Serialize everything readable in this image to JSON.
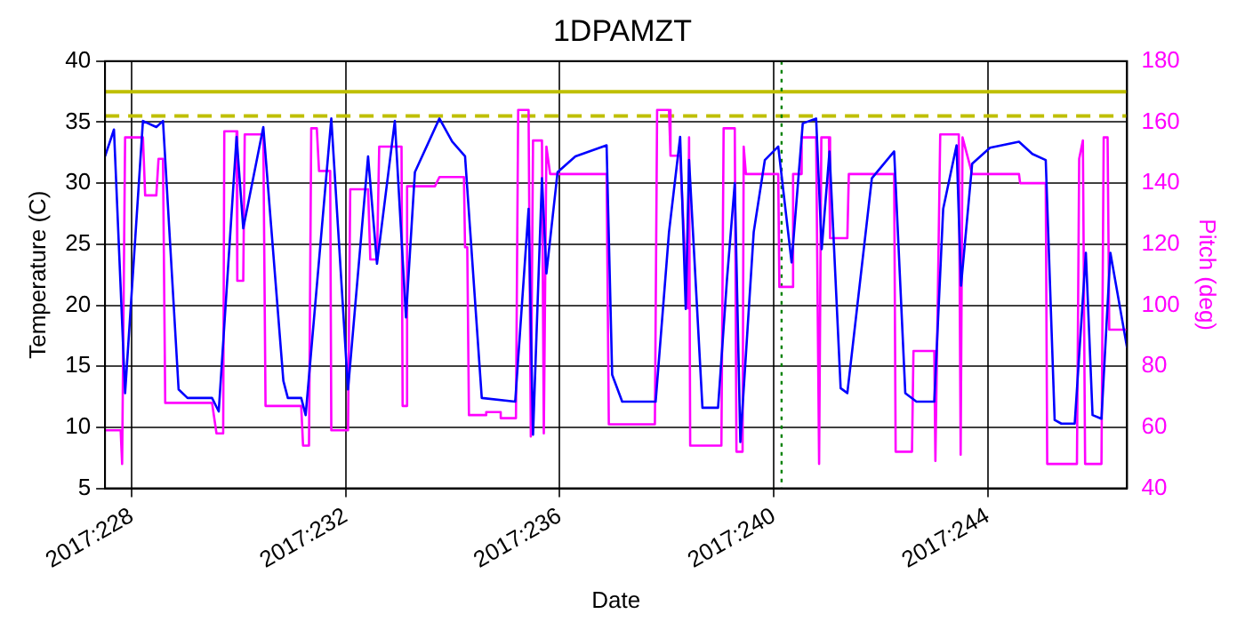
{
  "chart_data": {
    "type": "line",
    "title": "1DPAMZT",
    "xlabel": "Date",
    "ylabel": "Temperature (C)",
    "y2label": "Pitch (deg)",
    "xlim": [
      "2017-08-15T12:00",
      "2017-09-03T14:30"
    ],
    "xticks": [
      {
        "value": "2017-08-16",
        "label": "2017:228"
      },
      {
        "value": "2017-08-20",
        "label": "2017:232"
      },
      {
        "value": "2017-08-24",
        "label": "2017:236"
      },
      {
        "value": "2017-08-28",
        "label": "2017:240"
      },
      {
        "value": "2017-09-01",
        "label": "2017:244"
      }
    ],
    "ylim": [
      5,
      40
    ],
    "yticks": [
      5,
      10,
      15,
      20,
      25,
      30,
      35,
      40
    ],
    "y2lim": [
      40,
      180
    ],
    "y2ticks": [
      40,
      60,
      80,
      100,
      120,
      140,
      160,
      180
    ],
    "grid": true,
    "legend": false,
    "marker": "none",
    "ref_lines": [
      {
        "axis": "y",
        "value": 37.5,
        "color": "#bfbf00",
        "line_style": "solid"
      },
      {
        "axis": "y",
        "value": 35.5,
        "color": "#bfbf00",
        "line_style": "dashed"
      },
      {
        "axis": "x",
        "value": "2017-08-28T03:30",
        "color": "#008000",
        "line_style": "dotted"
      }
    ],
    "series": [
      {
        "color": "#0000ff",
        "x": [
          "2017-08-15T12:00",
          "2017-08-15T16:00",
          "2017-08-15T21:00",
          "2017-08-16T05:00",
          "2017-08-16T11:00",
          "2017-08-16T14:00",
          "2017-08-16T21:00",
          "2017-08-17T01:00",
          "2017-08-17T12:00",
          "2017-08-17T15:00",
          "2017-08-17T23:00",
          "2017-08-18T02:00",
          "2017-08-18T11:00",
          "2017-08-18T20:00",
          "2017-08-18T22:00",
          "2017-08-19T04:00",
          "2017-08-19T06:00",
          "2017-08-19T17:30",
          "2017-08-20T01:00",
          "2017-08-20T10:00",
          "2017-08-20T14:00",
          "2017-08-20T22:00",
          "2017-08-21T03:00",
          "2017-08-21T07:00",
          "2017-08-21T18:00",
          "2017-08-21T23:45",
          "2017-08-22T05:30",
          "2017-08-22T13:00",
          "2017-08-23T04:00",
          "2017-08-23T10:00",
          "2017-08-23T12:00",
          "2017-08-23T16:00",
          "2017-08-23T18:00",
          "2017-08-23T23:00",
          "2017-08-24T07:00",
          "2017-08-24T21:00",
          "2017-08-24T23:30",
          "2017-08-25T04:00",
          "2017-08-25T19:00",
          "2017-08-26T01:00",
          "2017-08-26T06:00",
          "2017-08-26T08:30",
          "2017-08-26T10:00",
          "2017-08-26T16:00",
          "2017-08-26T23:00",
          "2017-08-27T03:00",
          "2017-08-27T06:30",
          "2017-08-27T09:00",
          "2017-08-27T15:00",
          "2017-08-27T20:00",
          "2017-08-28T02:00",
          "2017-08-28T08:00",
          "2017-08-28T13:00",
          "2017-08-28T19:00",
          "2017-08-28T21:30",
          "2017-08-29T01:00",
          "2017-08-29T06:00",
          "2017-08-29T09:00",
          "2017-08-29T20:00",
          "2017-08-30T06:00",
          "2017-08-30T11:00",
          "2017-08-30T16:00",
          "2017-08-31T00:00",
          "2017-08-31T04:00",
          "2017-08-31T10:00",
          "2017-08-31T12:00",
          "2017-08-31T17:00",
          "2017-09-01T01:00",
          "2017-09-01T14:00",
          "2017-09-01T20:00",
          "2017-09-02T02:00",
          "2017-09-02T06:00",
          "2017-09-02T09:00",
          "2017-09-02T15:00",
          "2017-09-02T20:00",
          "2017-09-02T23:00",
          "2017-09-03T03:00",
          "2017-09-03T07:00",
          "2017-09-03T14:30"
        ],
        "values": [
          32.2,
          34.4,
          12.8,
          35.1,
          34.6,
          35.1,
          13.1,
          12.4,
          12.4,
          11.3,
          33.8,
          26.3,
          34.6,
          13.8,
          12.4,
          12.4,
          11.0,
          35.3,
          13.1,
          32.2,
          23.4,
          35.1,
          19.0,
          30.9,
          35.3,
          33.4,
          32.2,
          12.4,
          12.1,
          27.9,
          9.4,
          30.4,
          22.6,
          30.9,
          32.2,
          33.1,
          14.3,
          12.1,
          12.1,
          26.0,
          33.8,
          19.7,
          31.9,
          11.6,
          11.6,
          22.1,
          30.0,
          8.8,
          26.0,
          31.9,
          33.0,
          23.5,
          34.9,
          35.3,
          24.6,
          32.6,
          13.2,
          12.8,
          30.4,
          32.6,
          12.8,
          12.1,
          12.1,
          27.9,
          33.1,
          21.6,
          31.6,
          32.9,
          33.4,
          32.4,
          31.9,
          10.6,
          10.3,
          10.3,
          24.3,
          11.0,
          10.7,
          24.3,
          16.5
        ]
      },
      {
        "axis": "y2",
        "color": "#ff00ff",
        "x": [
          "2017-08-15T12:00",
          "2017-08-15T19:00",
          "2017-08-15T19:40",
          "2017-08-15T21:00",
          "2017-08-16T05:00",
          "2017-08-16T06:00",
          "2017-08-16T11:00",
          "2017-08-16T12:00",
          "2017-08-16T14:00",
          "2017-08-16T15:00",
          "2017-08-17T12:00",
          "2017-08-17T14:00",
          "2017-08-17T17:00",
          "2017-08-17T17:30",
          "2017-08-17T23:00",
          "2017-08-17T23:20",
          "2017-08-18T02:00",
          "2017-08-18T02:40",
          "2017-08-18T11:00",
          "2017-08-18T12:00",
          "2017-08-19T04:00",
          "2017-08-19T04:50",
          "2017-08-19T07:30",
          "2017-08-19T08:30",
          "2017-08-19T11:00",
          "2017-08-19T12:00",
          "2017-08-19T17:00",
          "2017-08-19T17:30",
          "2017-08-20T01:00",
          "2017-08-20T02:00",
          "2017-08-20T10:00",
          "2017-08-20T11:00",
          "2017-08-20T14:00",
          "2017-08-20T15:00",
          "2017-08-21T01:00",
          "2017-08-21T01:30",
          "2017-08-21T03:00",
          "2017-08-21T03:30",
          "2017-08-21T16:00",
          "2017-08-21T18:00",
          "2017-08-22T05:00",
          "2017-08-22T05:30",
          "2017-08-22T06:30",
          "2017-08-22T07:15",
          "2017-08-22T15:00",
          "2017-08-22T15:00",
          "2017-08-22T21:30",
          "2017-08-22T21:30",
          "2017-08-23T04:20",
          "2017-08-23T05:20",
          "2017-08-23T10:00",
          "2017-08-23T11:00",
          "2017-08-23T12:00",
          "2017-08-23T16:00",
          "2017-08-23T16:50",
          "2017-08-23T18:00",
          "2017-08-23T19:40",
          "2017-08-24T21:00",
          "2017-08-24T22:00",
          "2017-08-25T18:40",
          "2017-08-25T19:40",
          "2017-08-26T01:00",
          "2017-08-26T01:40",
          "2017-08-26T06:00",
          "2017-08-26T09:20",
          "2017-08-26T10:00",
          "2017-08-26T10:30",
          "2017-08-27T00:30",
          "2017-08-27T01:30",
          "2017-08-27T06:30",
          "2017-08-27T07:15",
          "2017-08-27T10:00",
          "2017-08-27T10:30",
          "2017-08-27T11:30",
          "2017-08-28T02:00",
          "2017-08-28T02:30",
          "2017-08-28T08:00",
          "2017-08-28T08:40",
          "2017-08-28T12:00",
          "2017-08-28T12:30",
          "2017-08-28T19:00",
          "2017-08-28T20:20",
          "2017-08-28T21:20",
          "2017-08-29T00:45",
          "2017-08-29T01:15",
          "2017-08-29T09:00",
          "2017-08-29T09:40",
          "2017-08-30T06:00",
          "2017-08-30T06:40",
          "2017-08-30T14:00",
          "2017-08-30T14:40",
          "2017-08-31T00:00",
          "2017-08-31T00:30",
          "2017-08-31T02:40",
          "2017-08-31T11:00",
          "2017-08-31T11:50",
          "2017-08-31T12:40",
          "2017-08-31T17:00",
          "2017-09-01T14:00",
          "2017-09-01T14:30",
          "2017-09-02T02:00",
          "2017-09-02T02:40",
          "2017-09-02T16:00",
          "2017-09-02T17:00",
          "2017-09-02T18:40",
          "2017-09-02T19:40",
          "2017-09-03T03:00",
          "2017-09-03T04:00",
          "2017-09-03T05:45",
          "2017-09-03T06:30",
          "2017-09-03T14:30"
        ],
        "values": [
          59,
          59,
          48,
          155,
          155,
          136,
          136,
          148,
          148,
          68,
          68,
          58,
          58,
          157,
          157,
          108,
          108,
          156,
          156,
          67,
          67,
          54,
          54,
          158,
          158,
          144,
          144,
          59,
          59,
          138,
          138,
          115,
          115,
          152,
          152,
          67,
          67,
          139,
          139,
          142,
          142,
          119,
          119,
          64,
          64,
          65,
          65,
          63,
          63,
          164,
          164,
          57,
          154,
          154,
          58,
          152,
          143,
          143,
          61,
          61,
          164,
          164,
          149,
          149,
          99,
          155,
          54,
          54,
          158,
          158,
          52,
          52,
          152,
          143,
          143,
          106,
          106,
          143,
          143,
          155,
          155,
          48,
          155,
          155,
          122,
          122,
          143,
          143,
          52,
          52,
          85,
          85,
          49,
          156,
          156,
          51,
          155,
          143,
          143,
          140,
          140,
          48,
          48,
          148,
          154,
          48,
          48,
          155,
          155,
          92,
          92
        ]
      }
    ]
  }
}
